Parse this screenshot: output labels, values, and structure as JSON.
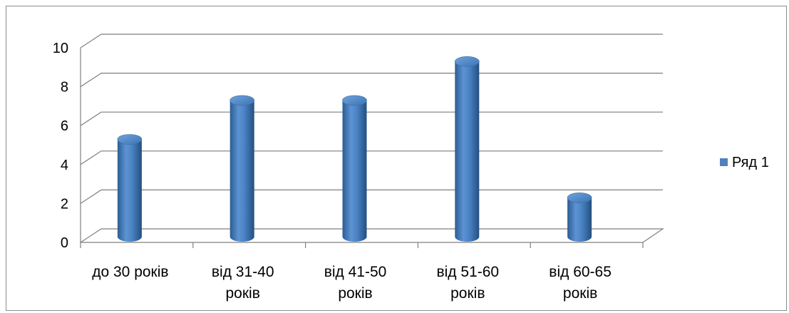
{
  "chart_data": {
    "type": "bar",
    "style": "3d-cylinder",
    "categories": [
      [
        "до 30 років"
      ],
      [
        "від 31-40",
        "років"
      ],
      [
        "від 41-50",
        "років"
      ],
      [
        "від 51-60",
        "років"
      ],
      [
        "від 60-65",
        "років"
      ]
    ],
    "series": [
      {
        "name": "Ряд 1",
        "values": [
          5,
          7,
          7,
          9,
          2
        ],
        "color": "#4f81bd"
      }
    ],
    "ylim": [
      0,
      10
    ],
    "yticks": [
      0,
      2,
      4,
      6,
      8,
      10
    ],
    "grid": true,
    "legend": "right"
  }
}
